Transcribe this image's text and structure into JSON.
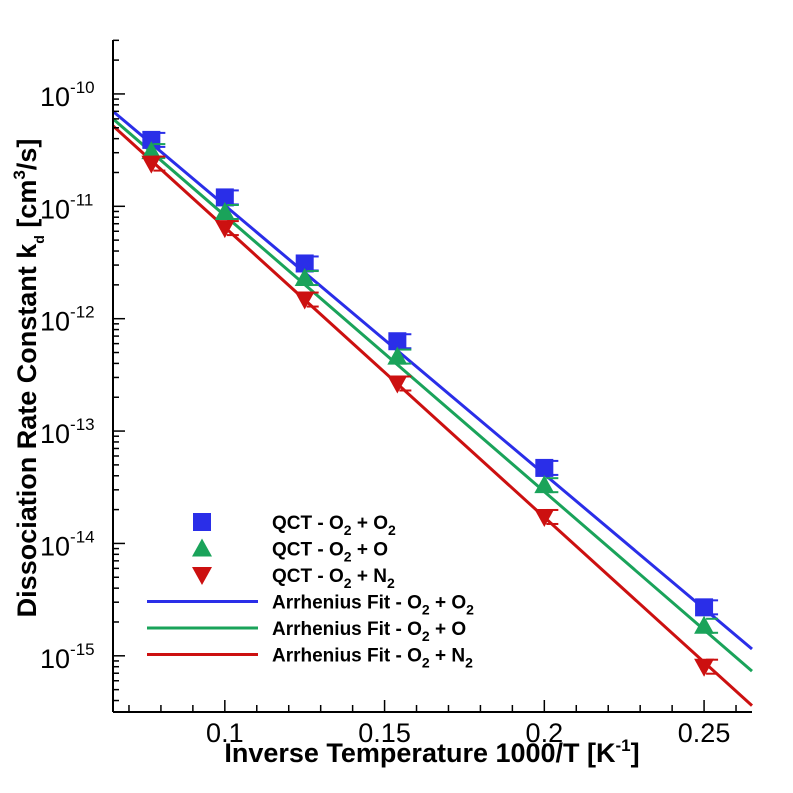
{
  "chart_data": {
    "type": "scatter",
    "xlabel": "Inverse Temperature 1000/T [K",
    "xlabel_exp": "-1",
    "xlabel_close": "]",
    "ylabel": "Dissociation Rate Constant k",
    "ylabel_sub": "d",
    "ylabel_unit_open": " [cm",
    "ylabel_unit_exp": "3",
    "ylabel_unit_close": "/s]",
    "xlim": [
      0.065,
      0.265
    ],
    "ylim_log10": [
      -15.5,
      -9.52
    ],
    "yscale": "log",
    "grid": false,
    "legend_position": "bottom-left",
    "x_ticks": [
      {
        "value": 0.1,
        "label": "0.1"
      },
      {
        "value": 0.15,
        "label": "0.15"
      },
      {
        "value": 0.2,
        "label": "0.2"
      },
      {
        "value": 0.25,
        "label": "0.25"
      }
    ],
    "y_ticks": [
      {
        "value": -10,
        "base": "10",
        "exp": "-10"
      },
      {
        "value": -11,
        "base": "10",
        "exp": "-11"
      },
      {
        "value": -12,
        "base": "10",
        "exp": "-12"
      },
      {
        "value": -13,
        "base": "10",
        "exp": "-13"
      },
      {
        "value": -14,
        "base": "10",
        "exp": "-14"
      },
      {
        "value": -15,
        "base": "10",
        "exp": "-15"
      }
    ],
    "points_series": [
      {
        "name_prefix": "QCT - O",
        "name_sub1": "2",
        "name_mid": " + O",
        "name_sub2": "2",
        "marker": "square",
        "color": "#2a2ee8",
        "x": [
          0.077,
          0.1,
          0.125,
          0.154,
          0.2,
          0.25
        ],
        "y": [
          3.9e-11,
          1.2e-11,
          3.1e-12,
          6.3e-13,
          4.7e-14,
          2.7e-15
        ]
      },
      {
        "name_prefix": "QCT - O",
        "name_sub1": "2",
        "name_mid": " + O",
        "name_sub2": "",
        "marker": "triangle-up",
        "color": "#1aa35a",
        "x": [
          0.077,
          0.1,
          0.125,
          0.154,
          0.2,
          0.25
        ],
        "y": [
          3.1e-11,
          8.9e-12,
          2.3e-12,
          4.6e-13,
          3.3e-14,
          1.85e-15
        ]
      },
      {
        "name_prefix": "QCT - O",
        "name_sub1": "2",
        "name_mid": " + N",
        "name_sub2": "2",
        "marker": "triangle-down",
        "color": "#cc1010",
        "x": [
          0.077,
          0.1,
          0.125,
          0.154,
          0.2,
          0.25
        ],
        "y": [
          2.4e-11,
          6.4e-12,
          1.48e-12,
          2.65e-13,
          1.72e-14,
          8e-16
        ]
      }
    ],
    "fit_series": [
      {
        "name_prefix": "Arrhenius Fit - O",
        "name_sub1": "2",
        "name_mid": " + O",
        "name_sub2": "2",
        "color": "#2a2ee8",
        "x": [
          0.065,
          0.265
        ],
        "y": [
          7e-11,
          1.15e-15
        ]
      },
      {
        "name_prefix": "Arrhenius Fit - O",
        "name_sub1": "2",
        "name_mid": " + O",
        "name_sub2": "",
        "color": "#1aa35a",
        "x": [
          0.065,
          0.265
        ],
        "y": [
          6e-11,
          7.3e-16
        ]
      },
      {
        "name_prefix": "Arrhenius Fit - O",
        "name_sub1": "2",
        "name_mid": " + N",
        "name_sub2": "2",
        "color": "#cc1010",
        "x": [
          0.065,
          0.265
        ],
        "y": [
          5.2e-11,
          3.6e-16
        ]
      }
    ]
  }
}
